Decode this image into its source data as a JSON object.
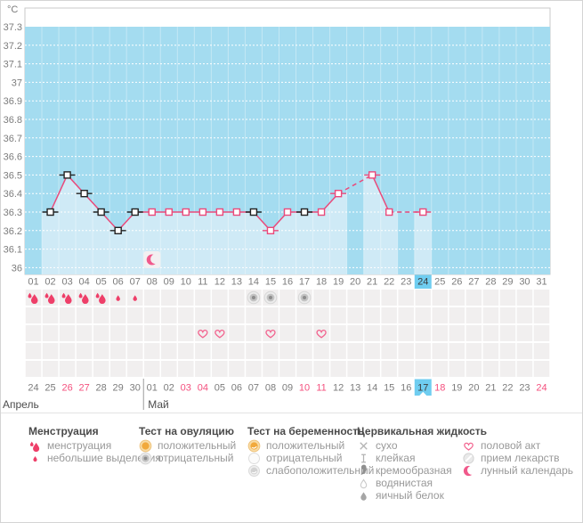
{
  "colors": {
    "plot_bg": "#a4dcf0",
    "area_fill": "#cfeaf6",
    "line_pink": "#ea4a7b",
    "marker_black": "#222222",
    "select_blue": "#6fcdf0",
    "pink_text": "#f4507e",
    "gray_text": "#7c7c7c",
    "cell_bg": "#f1efef",
    "drop_red": "#ee3f69",
    "heart_pink": "#f2628e"
  },
  "chart_data": {
    "type": "line",
    "title": "",
    "ylabel": "°С",
    "yticks": [
      "37.3",
      "37.2",
      "37.1",
      "37",
      "36.9",
      "36.8",
      "36.7",
      "36.6",
      "36.5",
      "36.4",
      "36.3",
      "36.2",
      "36.1",
      "36"
    ],
    "ylim": [
      35.95,
      37.4
    ],
    "grid": "dotted-white",
    "x_days": [
      "01",
      "02",
      "03",
      "04",
      "05",
      "06",
      "07",
      "08",
      "09",
      "10",
      "11",
      "12",
      "13",
      "14",
      "15",
      "16",
      "17",
      "18",
      "19",
      "20",
      "21",
      "22",
      "23",
      "24",
      "25",
      "26",
      "27",
      "28",
      "29",
      "30",
      "31"
    ],
    "selected_cycle_day": 24,
    "lunar_icon_day": 8,
    "points": [
      {
        "day": 2,
        "temp": 36.3,
        "marker": "black"
      },
      {
        "day": 3,
        "temp": 36.5,
        "marker": "black"
      },
      {
        "day": 4,
        "temp": 36.4,
        "marker": "black"
      },
      {
        "day": 5,
        "temp": 36.3,
        "marker": "black"
      },
      {
        "day": 6,
        "temp": 36.2,
        "marker": "black"
      },
      {
        "day": 7,
        "temp": 36.3,
        "marker": "black"
      },
      {
        "day": 8,
        "temp": 36.3,
        "marker": "pink"
      },
      {
        "day": 9,
        "temp": 36.3,
        "marker": "pink"
      },
      {
        "day": 10,
        "temp": 36.3,
        "marker": "pink"
      },
      {
        "day": 11,
        "temp": 36.3,
        "marker": "pink"
      },
      {
        "day": 12,
        "temp": 36.3,
        "marker": "pink"
      },
      {
        "day": 13,
        "temp": 36.3,
        "marker": "pink"
      },
      {
        "day": 14,
        "temp": 36.3,
        "marker": "black"
      },
      {
        "day": 15,
        "temp": 36.2,
        "marker": "pinktick"
      },
      {
        "day": 16,
        "temp": 36.3,
        "marker": "pink"
      },
      {
        "day": 17,
        "temp": 36.3,
        "marker": "black"
      },
      {
        "day": 18,
        "temp": 36.3,
        "marker": "pink"
      },
      {
        "day": 19,
        "temp": 36.4,
        "marker": "pinktick"
      },
      {
        "day": 21,
        "temp": 36.5,
        "marker": "pinktick"
      },
      {
        "day": 22,
        "temp": 36.3,
        "marker": "pink"
      },
      {
        "day": 24,
        "temp": 36.3,
        "marker": "pinktick"
      }
    ]
  },
  "entry_rows": {
    "band_count": 5,
    "bands": [
      {
        "band": 0,
        "entries": [
          {
            "day": 1,
            "icon": "drop-heavy"
          },
          {
            "day": 2,
            "icon": "drop-heavy"
          },
          {
            "day": 3,
            "icon": "drop-heavy"
          },
          {
            "day": 4,
            "icon": "drop-heavy"
          },
          {
            "day": 5,
            "icon": "drop-heavy"
          },
          {
            "day": 6,
            "icon": "drop-light"
          },
          {
            "day": 7,
            "icon": "drop-light"
          },
          {
            "day": 14,
            "icon": "test-negative"
          },
          {
            "day": 15,
            "icon": "test-negative"
          },
          {
            "day": 17,
            "icon": "test-negative"
          }
        ]
      },
      {
        "band": 2,
        "entries": [
          {
            "day": 11,
            "icon": "heart"
          },
          {
            "day": 12,
            "icon": "heart"
          },
          {
            "day": 15,
            "icon": "heart"
          },
          {
            "day": 18,
            "icon": "heart"
          }
        ]
      }
    ]
  },
  "date_row": {
    "month_left": "Апрель",
    "month_right": "Май",
    "separator_after": 7,
    "dates": [
      {
        "d": "24"
      },
      {
        "d": "25"
      },
      {
        "d": "26",
        "pink": true
      },
      {
        "d": "27",
        "pink": true
      },
      {
        "d": "28"
      },
      {
        "d": "29"
      },
      {
        "d": "30"
      },
      {
        "d": "01"
      },
      {
        "d": "02"
      },
      {
        "d": "03",
        "pink": true
      },
      {
        "d": "04",
        "pink": true
      },
      {
        "d": "05"
      },
      {
        "d": "06"
      },
      {
        "d": "07"
      },
      {
        "d": "08"
      },
      {
        "d": "09"
      },
      {
        "d": "10",
        "pink": true
      },
      {
        "d": "11",
        "pink": true
      },
      {
        "d": "12"
      },
      {
        "d": "13"
      },
      {
        "d": "14"
      },
      {
        "d": "15"
      },
      {
        "d": "16"
      },
      {
        "d": "17",
        "selected": true
      },
      {
        "d": "18",
        "pink": true
      },
      {
        "d": "19"
      },
      {
        "d": "20"
      },
      {
        "d": "21"
      },
      {
        "d": "22"
      },
      {
        "d": "23"
      },
      {
        "d": "24",
        "pink": true
      }
    ]
  },
  "legend": {
    "columns": [
      {
        "title": "Менструация",
        "items": [
          {
            "icon": "drop-heavy",
            "label": "менструация"
          },
          {
            "icon": "drop-light",
            "label": "небольшие выделения"
          }
        ]
      },
      {
        "title": "Тест на овуляцию",
        "items": [
          {
            "icon": "test-positive",
            "label": "положительный"
          },
          {
            "icon": "test-negative",
            "label": "отрицательный"
          }
        ]
      },
      {
        "title": "Тест на беременность",
        "items": [
          {
            "icon": "preg-positive",
            "label": "положительный"
          },
          {
            "icon": "preg-negative",
            "label": "отрицательный"
          },
          {
            "icon": "preg-weak",
            "label": "слабоположительный"
          }
        ]
      },
      {
        "title": "Цервикальная жидкость",
        "items": [
          {
            "icon": "dry-cross",
            "label": "сухо"
          },
          {
            "icon": "sticky",
            "label": "клейкая"
          },
          {
            "icon": "creamy",
            "label": "кремообразная"
          },
          {
            "icon": "watery",
            "label": "водянистая"
          },
          {
            "icon": "eggwhite",
            "label": "яичный белок"
          }
        ]
      },
      {
        "title": "",
        "items": [
          {
            "icon": "heart",
            "label": "половой акт"
          },
          {
            "icon": "pills",
            "label": "прием лекарств"
          },
          {
            "icon": "lunar",
            "label": "лунный календарь"
          }
        ]
      }
    ]
  }
}
